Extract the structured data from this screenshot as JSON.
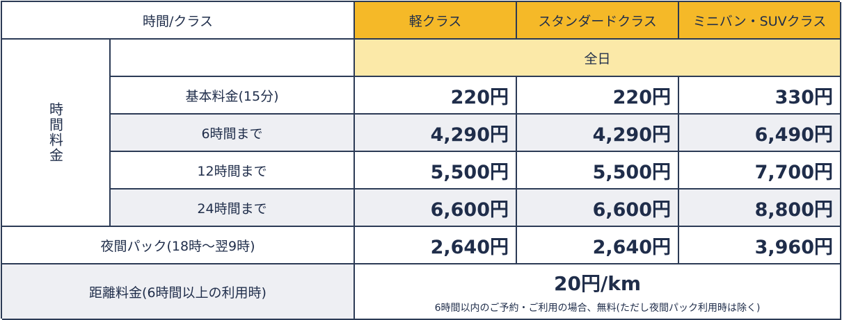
{
  "header": {
    "corner": "時間/クラス",
    "classes": [
      "軽クラス",
      "スタンダードクラス",
      "ミニバン・SUVクラス"
    ]
  },
  "time_fee": {
    "side_label": "時間料金",
    "period_label": "全日",
    "rows": [
      {
        "label": "基本料金(15分)",
        "prices": [
          "220円",
          "220円",
          "330円"
        ]
      },
      {
        "label": "6時間まで",
        "prices": [
          "4,290円",
          "4,290円",
          "6,490円"
        ]
      },
      {
        "label": "12時間まで",
        "prices": [
          "5,500円",
          "5,500円",
          "7,700円"
        ]
      },
      {
        "label": "24時間まで",
        "prices": [
          "6,600円",
          "6,600円",
          "8,800円"
        ]
      }
    ]
  },
  "night_pack": {
    "label": "夜間パック(18時〜翌9時)",
    "prices": [
      "2,640円",
      "2,640円",
      "3,960円"
    ]
  },
  "distance_fee": {
    "label": "距離料金(6時間以上の利用時)",
    "value": "20円/km",
    "note": "6時間以内のご予約・ご利用の場合、無料(ただし夜間パック利用時は除く)"
  },
  "colors": {
    "header_yellow": "#f5b928",
    "period_cream": "#fbe9a8",
    "row_gray": "#eeeff3",
    "border_navy": "#2b3a55",
    "text_navy": "#1f2d4a"
  }
}
